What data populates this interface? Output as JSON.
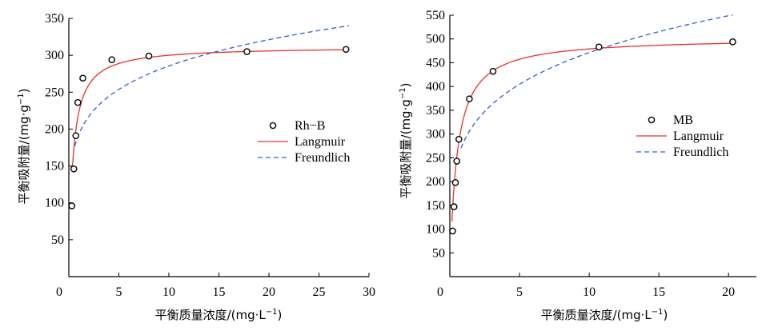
{
  "chart_data": [
    {
      "type": "scatter",
      "xlabel": "平衡质量浓度/(mg·L",
      "xlabel_sup": "−1",
      "xlabel_end": ")",
      "ylabel": "平衡吸附量/(mg·g",
      "ylabel_sup": "−1",
      "ylabel_end": ")",
      "xlim": [
        0,
        30
      ],
      "ylim": [
        0,
        350
      ],
      "xticks": [
        0,
        5,
        10,
        15,
        20,
        25,
        30
      ],
      "yticks": [
        50,
        100,
        150,
        200,
        250,
        300,
        350
      ],
      "legend_position": "center-right",
      "grid": false,
      "series": [
        {
          "name": "Rh−B",
          "kind": "points",
          "marker": "open-circle",
          "color": "#000000",
          "x": [
            0.3,
            0.5,
            0.7,
            0.9,
            1.4,
            4.3,
            8.0,
            17.8,
            27.7
          ],
          "y": [
            96,
            146,
            191,
            236,
            269,
            294,
            299,
            305,
            308
          ]
        },
        {
          "name": "Langmuir",
          "kind": "line",
          "style": "solid",
          "color": "#e8302a",
          "model": "langmuir",
          "qmax": 312,
          "K": 2.5,
          "x_range": [
            0.35,
            28
          ]
        },
        {
          "name": "Freundlich",
          "kind": "line",
          "style": "dashed",
          "color": "#3a5ad0",
          "model": "freundlich",
          "Kf": 193,
          "n_inv": 0.17,
          "x_range": [
            0.6,
            28
          ]
        }
      ]
    },
    {
      "type": "scatter",
      "xlabel": "平衡质量浓度/(mg·L",
      "xlabel_sup": "−1",
      "xlabel_end": ")",
      "ylabel": "平衡吸附量/(mg·g",
      "ylabel_sup": "−1",
      "ylabel_end": ")",
      "xlim": [
        0,
        22
      ],
      "ylim": [
        0,
        550
      ],
      "xticks": [
        0,
        5,
        10,
        15,
        20
      ],
      "yticks": [
        50,
        100,
        150,
        200,
        250,
        300,
        350,
        400,
        450,
        500,
        550
      ],
      "legend_position": "center-right",
      "grid": false,
      "series": [
        {
          "name": "MB",
          "kind": "points",
          "marker": "open-circle",
          "color": "#000000",
          "x": [
            0.2,
            0.3,
            0.4,
            0.5,
            0.65,
            1.4,
            3.1,
            10.7,
            20.3
          ],
          "y": [
            96,
            147,
            198,
            243,
            289,
            374,
            432,
            483,
            494
          ]
        },
        {
          "name": "Langmuir",
          "kind": "line",
          "style": "solid",
          "color": "#e8302a",
          "model": "langmuir",
          "qmax": 503,
          "K": 2.0,
          "x_range": [
            0.15,
            20.3
          ]
        },
        {
          "name": "Freundlich",
          "kind": "line",
          "style": "dashed",
          "color": "#3a5ad0",
          "model": "freundlich",
          "Kf": 284,
          "n_inv": 0.22,
          "x_range": [
            0.8,
            20.3
          ]
        }
      ]
    }
  ]
}
